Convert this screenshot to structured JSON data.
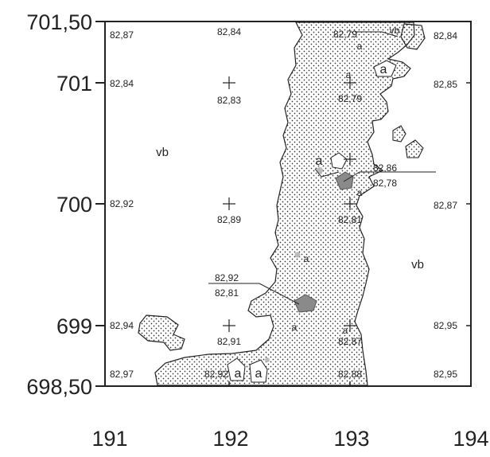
{
  "y_labels": [
    "701,50",
    "701",
    "700",
    "699",
    "698,50"
  ],
  "x_labels": [
    "191",
    "192",
    "193",
    "194"
  ],
  "elevations": {
    "r0_left": "82,87",
    "r0_mid": "82,84",
    "r0_center": "82,79",
    "r0_right": "82,84",
    "r1_left": "82,84",
    "r1_mid": "82,83",
    "r1_center": "82,79",
    "r1_right": "82,85",
    "r2_center_a": "82,86",
    "r2_center_b": "82,78",
    "r3_left": "82,92",
    "r3_mid": "82,89",
    "r3_center": "82,81",
    "r3_right": "82,87",
    "r4_center_a": "82,92",
    "r4_center_b": "82,81",
    "r5_left": "82,94",
    "r5_mid": "82,91",
    "r5_center": "82,87",
    "r5_right": "82,95",
    "r6_left": "82,97",
    "r6_mid": "82,92",
    "r6_center": "82,88",
    "r6_right": "82,95"
  },
  "zones": {
    "vb_left": "vb",
    "vb_right": "vb",
    "vb_top": "vb"
  },
  "markers": {
    "a1": "a",
    "a2": "a",
    "a3": "a",
    "a4": "a",
    "a5": "a",
    "a6": "a",
    "a7": "a",
    "a8": "a",
    "a9": "a",
    "a10": "a"
  },
  "colors": {
    "line": "#222222",
    "dots": "#333333",
    "patch": "#8a8a8a"
  }
}
